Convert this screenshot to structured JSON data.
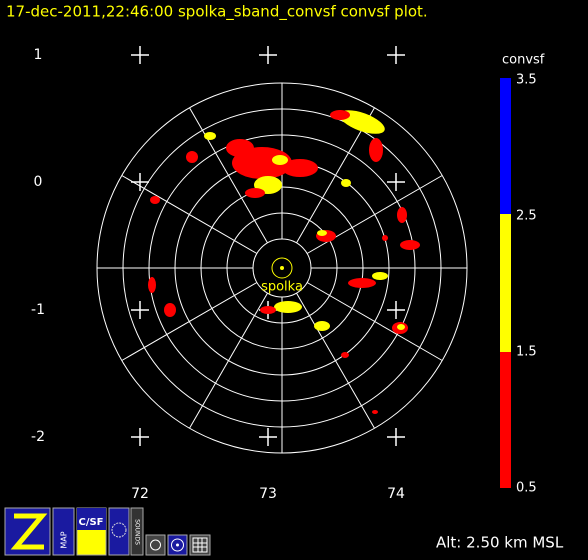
{
  "header": {
    "title": "17-dec-2011,22:46:00  spolka_sband_convsf convsf  plot."
  },
  "axes": {
    "y_labels": [
      "1",
      "0",
      "-1",
      "-2"
    ],
    "x_labels": [
      "72",
      "73",
      "74"
    ]
  },
  "station": {
    "label": "spolka"
  },
  "colorbar": {
    "title": "convsf",
    "labels": [
      "3.5",
      "2.5",
      "1.5",
      "0.5"
    ]
  },
  "toolbar": {
    "buttons": [
      "MAP",
      "C/SF",
      "SOUNDS"
    ]
  },
  "footer": {
    "altitude": "Alt: 2.50 km MSL"
  }
}
